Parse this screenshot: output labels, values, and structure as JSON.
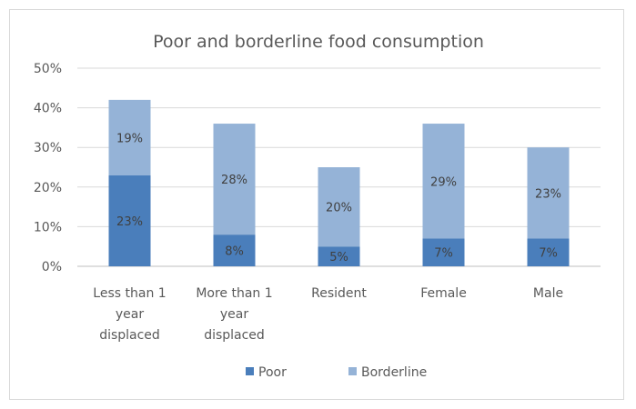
{
  "chart_data": {
    "type": "bar",
    "stacked": true,
    "title": "Poor and borderline food consumption",
    "categories": [
      [
        "Less than 1",
        "year",
        "displaced"
      ],
      [
        "More than 1",
        "year",
        "displaced"
      ],
      [
        "Resident"
      ],
      [
        "Female"
      ],
      [
        "Male"
      ]
    ],
    "series": [
      {
        "name": "Poor",
        "color": "#4a7ebb",
        "values": [
          23,
          8,
          5,
          7,
          7
        ],
        "labels": [
          "23%",
          "8%",
          "5%",
          "7%",
          "7%"
        ]
      },
      {
        "name": "Borderline",
        "color": "#95b3d7",
        "values": [
          19,
          28,
          20,
          29,
          23
        ],
        "labels": [
          "19%",
          "28%",
          "20%",
          "29%",
          "23%"
        ]
      }
    ],
    "ylim": [
      0,
      50
    ],
    "yticks": [
      "0%",
      "10%",
      "20%",
      "30%",
      "40%",
      "50%"
    ],
    "grid": true,
    "legend": "bottom"
  }
}
